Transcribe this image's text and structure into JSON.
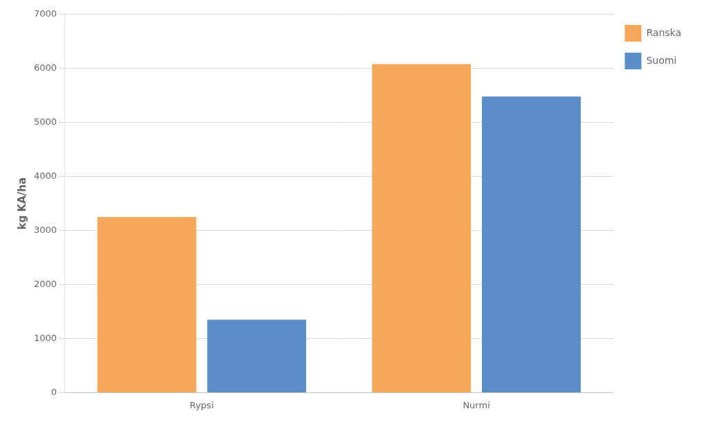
{
  "chart_data": {
    "type": "bar",
    "categories": [
      "Rypsi",
      "Nurmi"
    ],
    "series": [
      {
        "name": "Ranska",
        "color": "#F5A85A",
        "values": [
          3250,
          6080
        ]
      },
      {
        "name": "Suomi",
        "color": "#5B8DC8",
        "values": [
          1350,
          5480
        ]
      }
    ],
    "ylabel": "kg KA/ha",
    "ylim": [
      0,
      7000
    ],
    "yticks": [
      0,
      1000,
      2000,
      3000,
      4000,
      5000,
      6000,
      7000
    ],
    "grid": "y",
    "legend": "right"
  }
}
